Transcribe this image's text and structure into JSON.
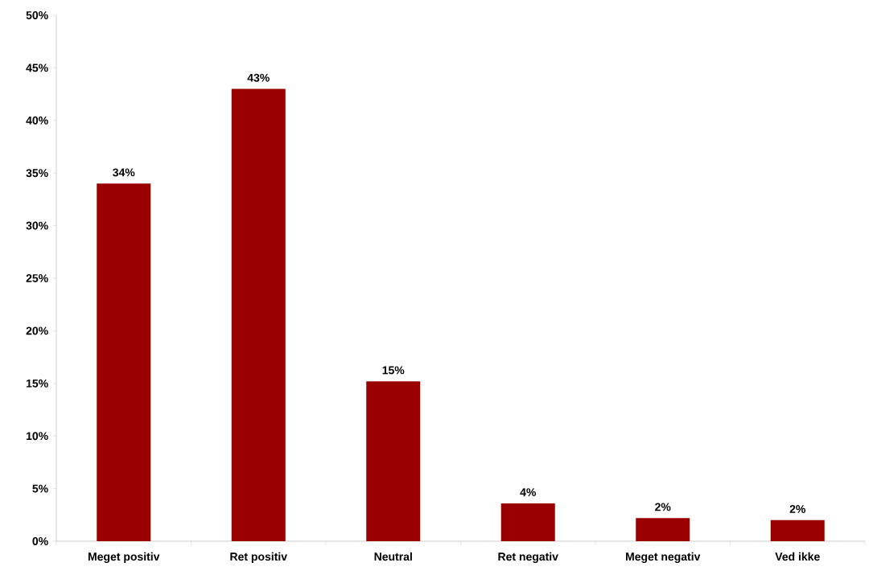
{
  "chart_data": {
    "type": "bar",
    "categories": [
      "Meget positiv",
      "Ret positiv",
      "Neutral",
      "Ret negativ",
      "Meget negativ",
      "Ved ikke"
    ],
    "values": [
      34,
      43,
      15.2,
      3.6,
      2.2,
      2
    ],
    "value_labels": [
      "34%",
      "43%",
      "15%",
      "4%",
      "2%",
      "2%"
    ],
    "color": "#9a0000",
    "ylim": [
      0,
      50
    ],
    "yticks": [
      {
        "value": 0,
        "label": "0%"
      },
      {
        "value": 5,
        "label": "5%"
      },
      {
        "value": 10,
        "label": "10%"
      },
      {
        "value": 15,
        "label": "15%"
      },
      {
        "value": 20,
        "label": "20%"
      },
      {
        "value": 25,
        "label": "25%"
      },
      {
        "value": 30,
        "label": "30%"
      },
      {
        "value": 35,
        "label": "35%"
      },
      {
        "value": 40,
        "label": "40%"
      },
      {
        "value": 45,
        "label": "45%"
      },
      {
        "value": 50,
        "label": "50%"
      }
    ],
    "grid": false
  }
}
